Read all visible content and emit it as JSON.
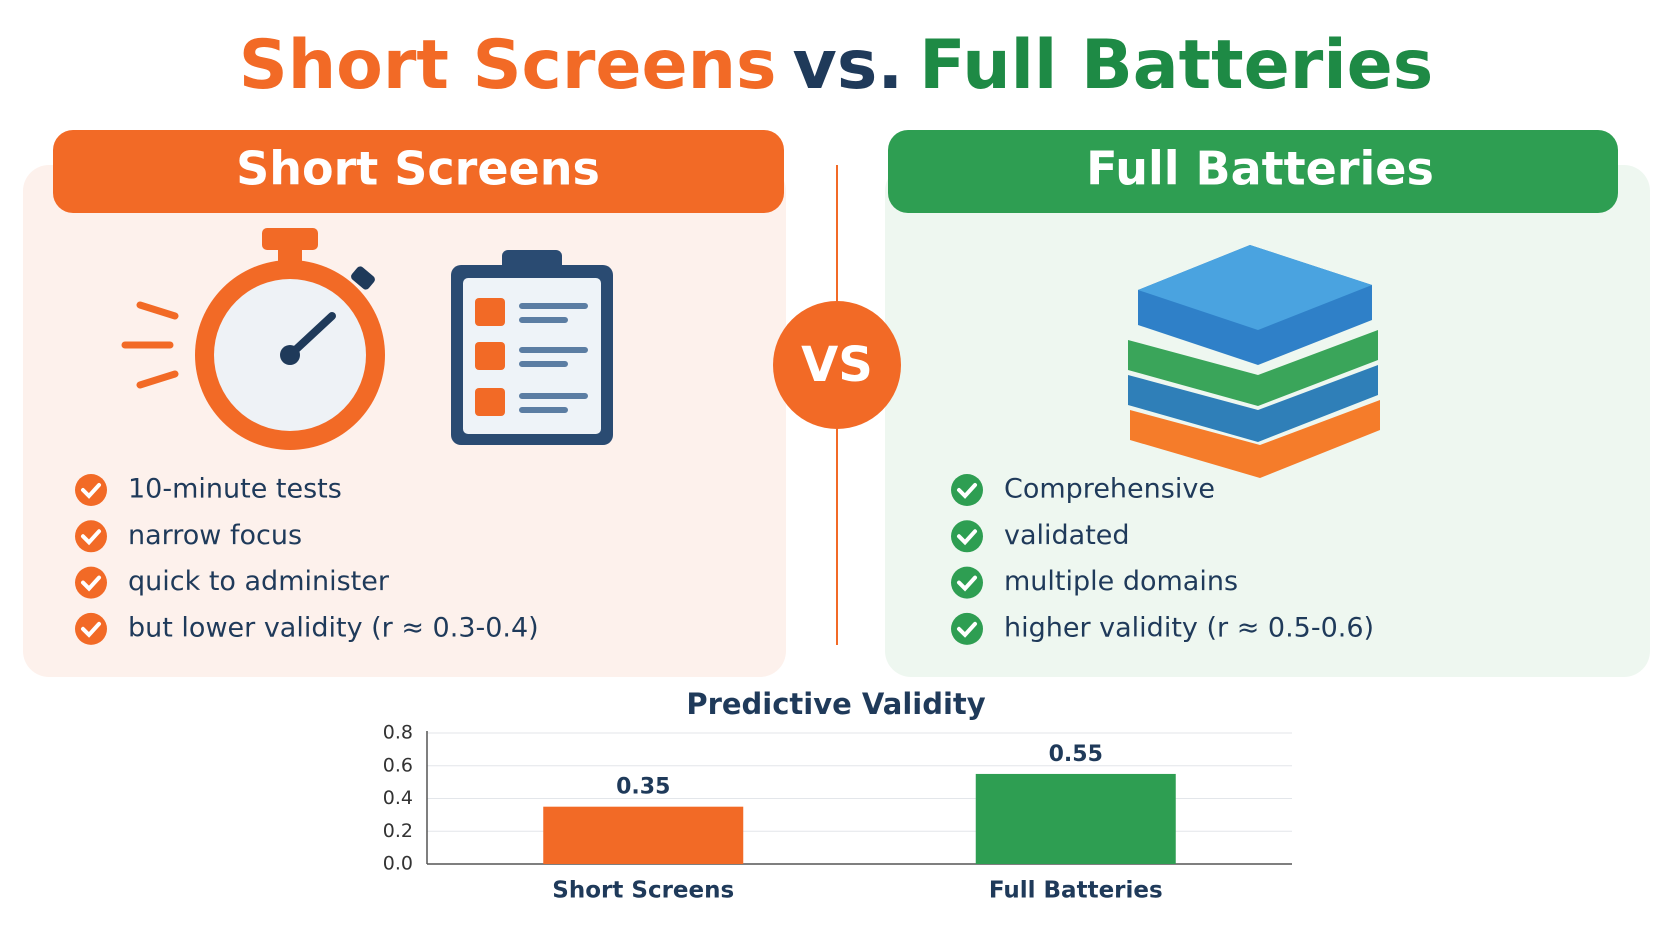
{
  "header": {
    "title_part1": "Short Screens",
    "title_part2": "vs.",
    "title_part3": "Full Batteries"
  },
  "left_panel": {
    "heading": "Short Screens",
    "bullets": [
      "10-minute tests",
      "narrow focus",
      "quick to administer",
      "but lower validity (r ≈ 0.3-0.4)"
    ]
  },
  "vs_badge": "VS",
  "right_panel": {
    "heading": "Full Batteries",
    "bullets": [
      "Comprehensive",
      "validated",
      "multiple domains",
      "higher validity (r ≈ 0.5-0.6)"
    ]
  },
  "chart_data": {
    "type": "bar",
    "title": "Predictive Validity",
    "categories": [
      "Short Screens",
      "Full Batteries"
    ],
    "values": [
      0.35,
      0.55
    ],
    "colors": [
      "#f26a26",
      "#2e9e52"
    ],
    "ylim": [
      0,
      0.8
    ],
    "yticks": [
      {
        "value": 0,
        "label": "0.0"
      },
      {
        "value": 0.2,
        "label": "0.2"
      },
      {
        "value": 0.4,
        "label": "0.4"
      },
      {
        "value": 0.6,
        "label": "0.6"
      },
      {
        "value": 0.8,
        "label": "0.8"
      }
    ],
    "grid": true
  }
}
